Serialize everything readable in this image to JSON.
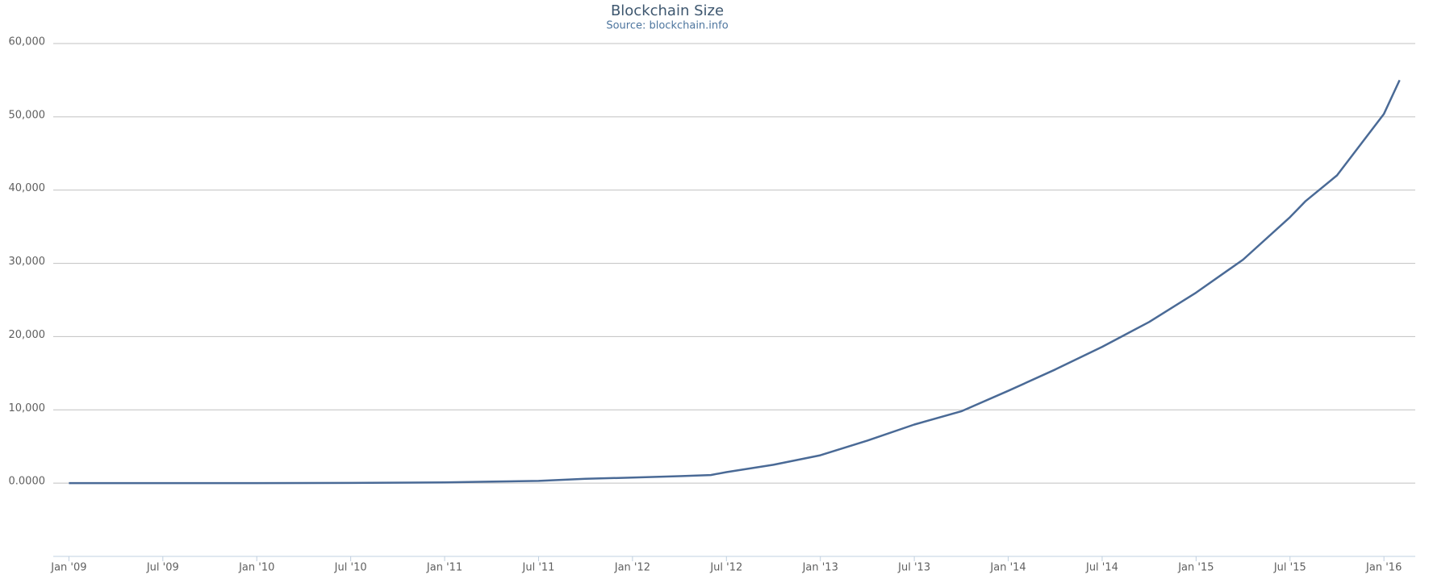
{
  "chart_data": {
    "type": "line",
    "title": "Blockchain Size",
    "subtitle": "Source: blockchain.info",
    "x": [
      "2009-01",
      "2009-07",
      "2010-01",
      "2010-07",
      "2011-01",
      "2011-04",
      "2011-07",
      "2011-10",
      "2012-01",
      "2012-04",
      "2012-06",
      "2012-07",
      "2012-10",
      "2013-01",
      "2013-04",
      "2013-07",
      "2013-10",
      "2014-01",
      "2014-04",
      "2014-07",
      "2014-10",
      "2015-01",
      "2015-04",
      "2015-07",
      "2015-08",
      "2015-10",
      "2016-01",
      "2016-02"
    ],
    "series": [
      {
        "name": "Blockchain Size",
        "color": "#4a6a96",
        "values": [
          0,
          2,
          10,
          30,
          100,
          200,
          300,
          600,
          750,
          950,
          1100,
          1500,
          2500,
          3800,
          5800,
          8000,
          9800,
          12600,
          15500,
          18600,
          22000,
          26000,
          30500,
          36300,
          38500,
          42000,
          50400,
          55000
        ]
      }
    ],
    "xlim": [
      "2008-12",
      "2016-03"
    ],
    "xticks": [
      {
        "value": "2009-01",
        "label": "Jan '09"
      },
      {
        "value": "2009-07",
        "label": "Jul '09"
      },
      {
        "value": "2010-01",
        "label": "Jan '10"
      },
      {
        "value": "2010-07",
        "label": "Jul '10"
      },
      {
        "value": "2011-01",
        "label": "Jan '11"
      },
      {
        "value": "2011-07",
        "label": "Jul '11"
      },
      {
        "value": "2012-01",
        "label": "Jan '12"
      },
      {
        "value": "2012-07",
        "label": "Jul '12"
      },
      {
        "value": "2013-01",
        "label": "Jan '13"
      },
      {
        "value": "2013-07",
        "label": "Jul '13"
      },
      {
        "value": "2014-01",
        "label": "Jan '14"
      },
      {
        "value": "2014-07",
        "label": "Jul '14"
      },
      {
        "value": "2015-01",
        "label": "Jan '15"
      },
      {
        "value": "2015-07",
        "label": "Jul '15"
      },
      {
        "value": "2016-01",
        "label": "Jan '16"
      }
    ],
    "ylim": [
      -10000,
      60000
    ],
    "yticks": [
      {
        "value": 0,
        "label": "0.0000"
      },
      {
        "value": 10000,
        "label": "10,000"
      },
      {
        "value": 20000,
        "label": "20,000"
      },
      {
        "value": 30000,
        "label": "30,000"
      },
      {
        "value": 40000,
        "label": "40,000"
      },
      {
        "value": 50000,
        "label": "50,000"
      },
      {
        "value": 60000,
        "label": "60,000"
      }
    ],
    "grid": true
  }
}
